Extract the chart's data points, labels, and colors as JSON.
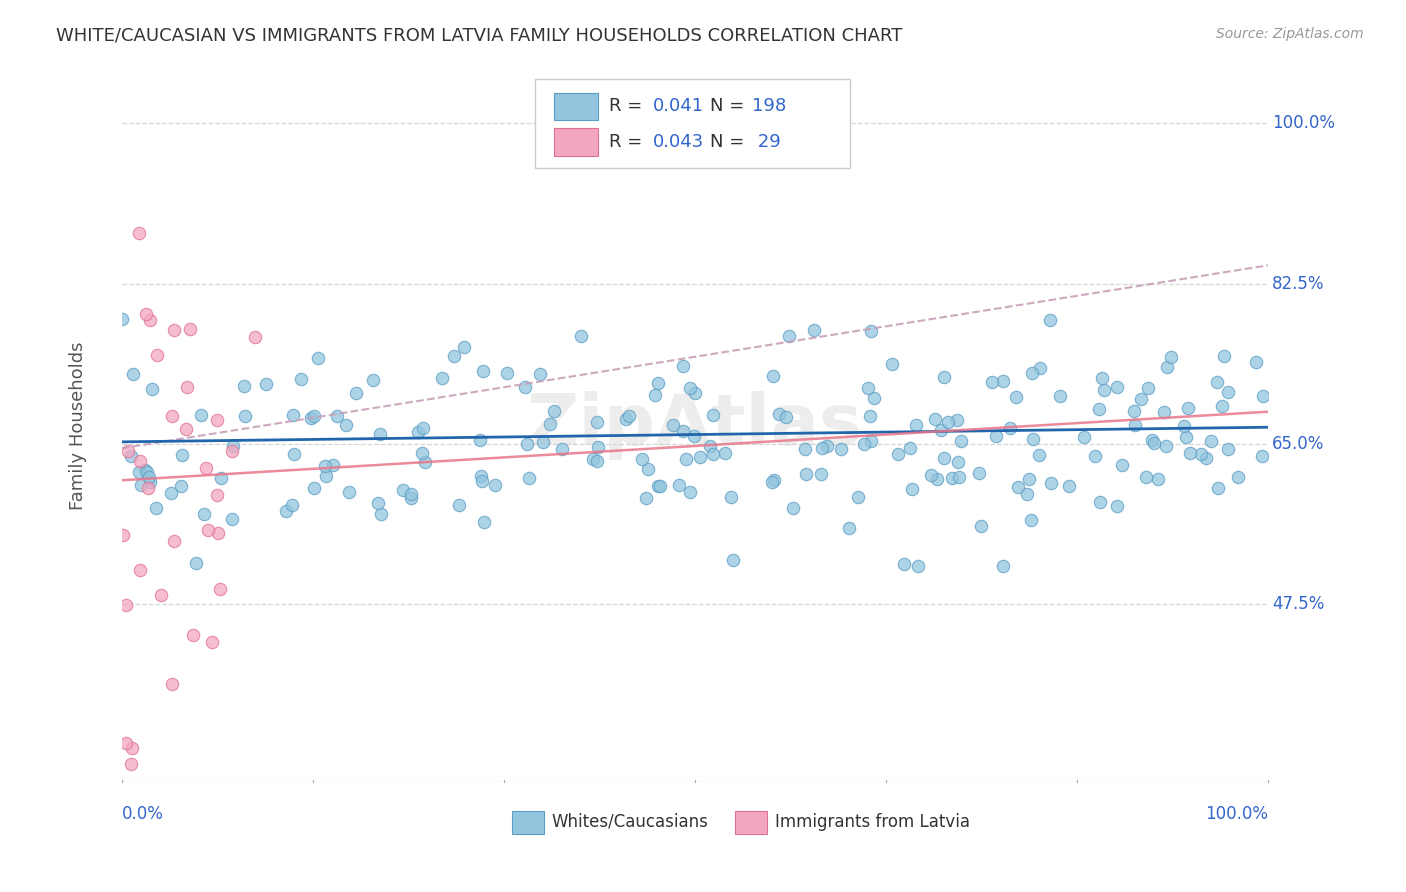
{
  "title": "WHITE/CAUCASIAN VS IMMIGRANTS FROM LATVIA FAMILY HOUSEHOLDS CORRELATION CHART",
  "source": "Source: ZipAtlas.com",
  "ylabel": "Family Households",
  "blue_R": 0.041,
  "blue_N": 198,
  "pink_R": 0.043,
  "pink_N": 29,
  "blue_color": "#92c5de",
  "pink_color": "#f4a6c0",
  "blue_edge_color": "#5b9dc4",
  "pink_edge_color": "#e07090",
  "blue_line_color": "#2166ac",
  "pink_line_color": "#e8768a",
  "dashed_line_color": "#c8a0b8",
  "axis_label_color": "#3366cc",
  "title_color": "#333333",
  "background_color": "#ffffff",
  "grid_color": "#cccccc",
  "watermark": "ZipAtlas",
  "xmin": 0.0,
  "xmax": 1.0,
  "ymin": 0.28,
  "ymax": 1.06,
  "ytick_positions": [
    1.0,
    0.825,
    0.65,
    0.475
  ],
  "ytick_labels": [
    "100.0%",
    "82.5%",
    "65.0%",
    "47.5%"
  ]
}
